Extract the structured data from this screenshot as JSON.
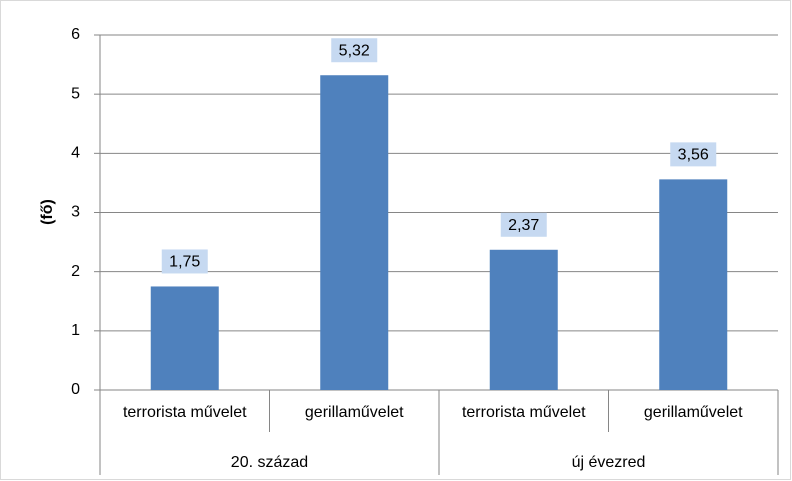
{
  "chart_data": {
    "type": "bar",
    "y_label": "(fő)",
    "categories": [
      "terrorista művelet",
      "gerillaművelet",
      "terrorista művelet",
      "gerillaművelet"
    ],
    "category_groups": [
      "20. század",
      "új évezred"
    ],
    "values": [
      1.75,
      5.32,
      2.37,
      3.56
    ],
    "value_labels": [
      "1,75",
      "5,32",
      "2,37",
      "3,56"
    ],
    "color": "#4f81bd",
    "label_box_color": "#c6d9f1",
    "ylim": [
      0,
      6
    ],
    "yticks": [
      0,
      1,
      2,
      3,
      4,
      5,
      6
    ],
    "grid": true
  }
}
